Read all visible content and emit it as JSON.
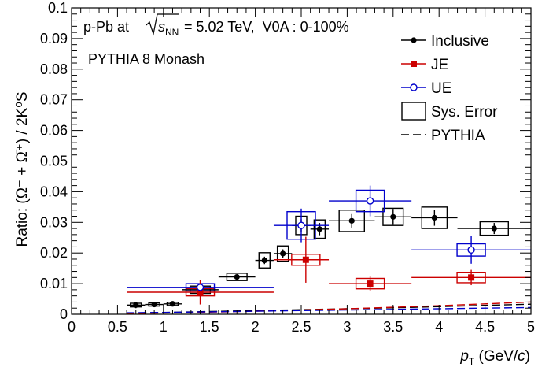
{
  "chart_data": {
    "type": "scatter",
    "xlabel": {
      "main": "p",
      "sub": "T",
      "unit_pre": " (GeV/",
      "unit_it": "c",
      "unit_post": ")"
    },
    "ylabel": "Ratio: (Ω⁻ + Ω̄⁺) / 2K⁰S",
    "annotations": {
      "system": "p-Pb at",
      "energy_root": "s",
      "energy_sub": "NN",
      "energy_value": " = 5.02 TeV,  V0A : 0-100%",
      "generator": "PYTHIA 8 Monash"
    },
    "xlim": [
      0,
      5
    ],
    "ylim": [
      0,
      0.1
    ],
    "x_ticks": [
      0,
      0.5,
      1,
      1.5,
      2,
      2.5,
      3,
      3.5,
      4,
      4.5,
      5
    ],
    "x_tick_labels": [
      "0",
      "0.5",
      "1",
      "1.5",
      "2",
      "2.5",
      "3",
      "3.5",
      "4",
      "4.5",
      "5"
    ],
    "y_ticks": [
      0,
      0.01,
      0.02,
      0.03,
      0.04,
      0.05,
      0.06,
      0.07,
      0.08,
      0.09,
      0.1
    ],
    "y_tick_labels": [
      "0",
      "0.01",
      "0.02",
      "0.03",
      "0.04",
      "0.05",
      "0.06",
      "0.07",
      "0.08",
      "0.09",
      "0.1"
    ],
    "grid": false,
    "legend_position": "top-right",
    "legend": [
      {
        "label": "Inclusive",
        "kind": "marker",
        "color": "#000000"
      },
      {
        "label": "JE",
        "kind": "marker",
        "color": "#cc0000"
      },
      {
        "label": "UE",
        "kind": "marker-open",
        "color": "#0000cc"
      },
      {
        "label": "Sys. Error",
        "kind": "box",
        "color": "#000000"
      },
      {
        "label": "PYTHIA",
        "kind": "dashed",
        "color": "#000000"
      }
    ],
    "series": [
      {
        "name": "Inclusive",
        "color": "#000000",
        "marker": "circle-filled",
        "points": [
          {
            "x": 0.7,
            "y": 0.003,
            "xlo": 0.6,
            "xhi": 0.8,
            "ey": 0.001,
            "sy": 0.0006
          },
          {
            "x": 0.9,
            "y": 0.0032,
            "xlo": 0.8,
            "xhi": 1.0,
            "ey": 0.0006,
            "sy": 0.0005
          },
          {
            "x": 1.1,
            "y": 0.0034,
            "xlo": 1.0,
            "xhi": 1.2,
            "ey": 0.0005,
            "sy": 0.0005
          },
          {
            "x": 1.4,
            "y": 0.008,
            "xlo": 1.2,
            "xhi": 1.6,
            "ey": 0.0007,
            "sy": 0.0012
          },
          {
            "x": 1.8,
            "y": 0.0122,
            "xlo": 1.6,
            "xhi": 2.0,
            "ey": 0.0008,
            "sy": 0.0012
          },
          {
            "x": 2.1,
            "y": 0.0176,
            "xlo": 2.0,
            "xhi": 2.2,
            "ey": 0.0012,
            "sy": 0.0025
          },
          {
            "x": 2.3,
            "y": 0.0198,
            "xlo": 2.2,
            "xhi": 2.4,
            "ey": 0.0014,
            "sy": 0.0025
          },
          {
            "x": 2.5,
            "y": 0.029,
            "xlo": 2.4,
            "xhi": 2.6,
            "ey": 0.002,
            "sy": 0.003
          },
          {
            "x": 2.7,
            "y": 0.0278,
            "xlo": 2.6,
            "xhi": 2.8,
            "ey": 0.002,
            "sy": 0.003
          },
          {
            "x": 3.05,
            "y": 0.0305,
            "xlo": 2.8,
            "xhi": 3.3,
            "ey": 0.0022,
            "sy": 0.0035
          },
          {
            "x": 3.5,
            "y": 0.0318,
            "xlo": 3.3,
            "xhi": 3.7,
            "ey": 0.0026,
            "sy": 0.0028
          },
          {
            "x": 3.95,
            "y": 0.0315,
            "xlo": 3.7,
            "xhi": 4.2,
            "ey": 0.0026,
            "sy": 0.0035
          },
          {
            "x": 4.6,
            "y": 0.028,
            "xlo": 4.2,
            "xhi": 5.0,
            "ey": 0.0018,
            "sy": 0.0022
          }
        ]
      },
      {
        "name": "JE",
        "color": "#cc0000",
        "marker": "square-filled",
        "points": [
          {
            "x": 1.4,
            "y": 0.0072,
            "xlo": 0.6,
            "xhi": 2.2,
            "ey": 0.004,
            "sy": 0.0012
          },
          {
            "x": 2.55,
            "y": 0.0178,
            "xlo": 2.2,
            "xhi": 2.8,
            "ey": 0.0075,
            "sy": 0.0018
          },
          {
            "x": 3.25,
            "y": 0.01,
            "xlo": 2.8,
            "xhi": 3.7,
            "ey": 0.0023,
            "sy": 0.0017
          },
          {
            "x": 4.35,
            "y": 0.012,
            "xlo": 3.7,
            "xhi": 5.0,
            "ey": 0.0025,
            "sy": 0.0017
          }
        ]
      },
      {
        "name": "UE",
        "color": "#0000cc",
        "marker": "circle-open",
        "points": [
          {
            "x": 1.4,
            "y": 0.0088,
            "xlo": 0.6,
            "xhi": 2.2,
            "ey": 0.0012,
            "sy": 0.0012
          },
          {
            "x": 2.5,
            "y": 0.029,
            "xlo": 2.2,
            "xhi": 2.8,
            "ey": 0.0055,
            "sy": 0.0045
          },
          {
            "x": 3.25,
            "y": 0.037,
            "xlo": 2.8,
            "xhi": 3.7,
            "ey": 0.005,
            "sy": 0.0035
          },
          {
            "x": 4.35,
            "y": 0.021,
            "xlo": 3.7,
            "xhi": 5.0,
            "ey": 0.0045,
            "sy": 0.002
          }
        ]
      }
    ],
    "pythia": [
      {
        "name": "PYTHIA Inclusive",
        "color": "#000000",
        "x": [
          0.6,
          1.0,
          1.5,
          2.0,
          2.5,
          3.0,
          3.5,
          4.0,
          4.5,
          5.0
        ],
        "y": [
          0.0004,
          0.0006,
          0.0009,
          0.0012,
          0.0015,
          0.0018,
          0.0021,
          0.0025,
          0.0029,
          0.0033
        ]
      },
      {
        "name": "PYTHIA JE",
        "color": "#cc0000",
        "x": [
          0.6,
          1.0,
          1.5,
          2.0,
          2.5,
          3.0,
          3.5,
          4.0,
          4.5,
          5.0
        ],
        "y": [
          0.0002,
          0.0004,
          0.0007,
          0.001,
          0.0014,
          0.0018,
          0.0023,
          0.0028,
          0.0034,
          0.004
        ]
      },
      {
        "name": "PYTHIA UE",
        "color": "#0000cc",
        "x": [
          0.6,
          1.0,
          1.5,
          2.0,
          2.5,
          3.0,
          3.5,
          4.0,
          4.5,
          5.0
        ],
        "y": [
          0.0005,
          0.0006,
          0.0008,
          0.001,
          0.0012,
          0.0014,
          0.0016,
          0.0018,
          0.002,
          0.0022
        ]
      }
    ]
  }
}
